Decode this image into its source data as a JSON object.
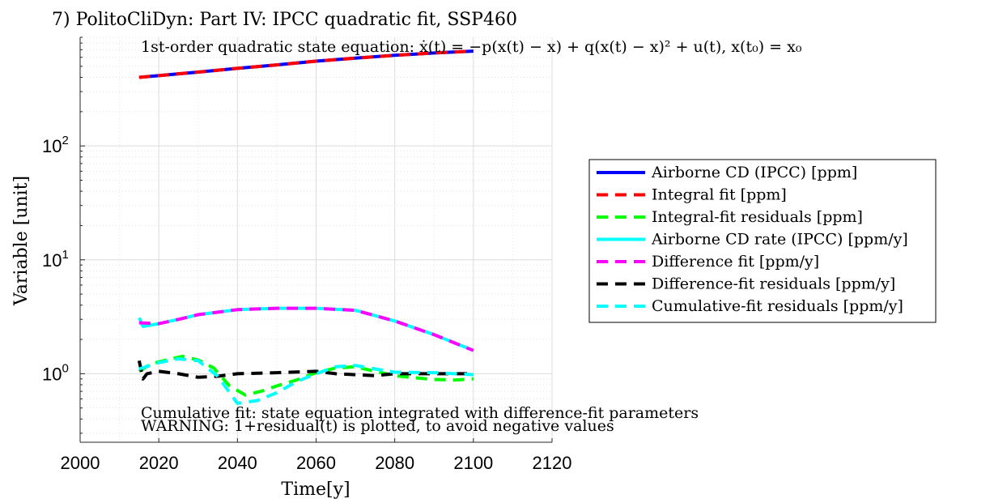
{
  "chart_data": {
    "type": "line",
    "title": "7) PolitoCliDyn: Part IV: IPCC quadratic fit, SSP460",
    "equation_text": "1st-order quadratic state equation: ẋ(t) = −p(x(t) − x) + q(x(t) − x)² + u(t), x(t₀) = x₀",
    "xlabel": "Time[y]",
    "ylabel": "Variable [unit]",
    "xlim": [
      2000,
      2120
    ],
    "ylim": [
      0.25,
      900
    ],
    "yscale": "log",
    "grid": true,
    "legend_position": "right",
    "x_ticks": [
      "2000",
      "2020",
      "2040",
      "2060",
      "2080",
      "2100",
      "2120"
    ],
    "y_ticks": [
      {
        "base": "10",
        "exp": "0",
        "value": 1
      },
      {
        "base": "10",
        "exp": "1",
        "value": 10
      },
      {
        "base": "10",
        "exp": "2",
        "value": 100
      }
    ],
    "annotations": [
      "Cumulative fit: state equation integrated with difference-fit parameters",
      "WARNING: 1+residual(t) is plotted, to avoid negative values"
    ],
    "series": [
      {
        "name": "Airborne CD (IPCC) [ppm]",
        "color": "#0000ff",
        "style": "solid",
        "x": [
          2015,
          2030,
          2040,
          2050,
          2060,
          2070,
          2080,
          2090,
          2100
        ],
        "y": [
          400,
          445,
          480,
          515,
          555,
          590,
          625,
          655,
          680
        ]
      },
      {
        "name": "Integral fit [ppm]",
        "color": "#ff0000",
        "style": "dashed",
        "x": [
          2015,
          2030,
          2040,
          2050,
          2060,
          2070,
          2080,
          2090,
          2100
        ],
        "y": [
          400,
          445,
          480,
          515,
          555,
          590,
          625,
          655,
          680
        ]
      },
      {
        "name": "Integral-fit residuals [ppm]",
        "color": "#00ff00",
        "style": "dashed",
        "x": [
          2015,
          2018,
          2022,
          2026,
          2030,
          2034,
          2038,
          2042,
          2046,
          2050,
          2055,
          2060,
          2065,
          2070,
          2075,
          2080,
          2085,
          2090,
          2095,
          2100
        ],
        "y": [
          1.05,
          1.22,
          1.32,
          1.42,
          1.32,
          1.12,
          0.78,
          0.65,
          0.7,
          0.78,
          0.88,
          1.02,
          1.12,
          1.15,
          1.05,
          0.96,
          0.92,
          0.89,
          0.88,
          0.9
        ]
      },
      {
        "name": "Airborne CD rate (IPCC) [ppm/y]",
        "color": "#00ffff",
        "style": "solid",
        "x": [
          2015,
          2016,
          2020,
          2025,
          2030,
          2040,
          2050,
          2060,
          2070,
          2080,
          2090,
          2100
        ],
        "y": [
          3.1,
          2.6,
          2.75,
          3.0,
          3.3,
          3.65,
          3.75,
          3.75,
          3.6,
          2.9,
          2.2,
          1.6
        ]
      },
      {
        "name": "Difference fit [ppm/y]",
        "color": "#ff00ff",
        "style": "dashed",
        "x": [
          2015,
          2020,
          2025,
          2030,
          2040,
          2050,
          2060,
          2070,
          2080,
          2090,
          2100
        ],
        "y": [
          2.8,
          2.75,
          3.0,
          3.3,
          3.65,
          3.75,
          3.75,
          3.6,
          2.9,
          2.2,
          1.6
        ]
      },
      {
        "name": "Difference-fit residuals [ppm/y]",
        "color": "#000000",
        "style": "dashed",
        "x": [
          2015,
          2016,
          2017,
          2020,
          2025,
          2030,
          2035,
          2040,
          2050,
          2060,
          2065,
          2070,
          2075,
          2080,
          2090,
          2100
        ],
        "y": [
          1.3,
          0.9,
          1.0,
          1.05,
          1.0,
          0.93,
          0.95,
          1.0,
          1.02,
          1.05,
          1.0,
          0.98,
          0.96,
          1.0,
          1.0,
          1.0
        ]
      },
      {
        "name": "Cumulative-fit residuals [ppm/y]",
        "color": "#00ffff",
        "style": "dashed",
        "x": [
          2015,
          2020,
          2025,
          2030,
          2035,
          2040,
          2045,
          2050,
          2055,
          2060,
          2065,
          2070,
          2075,
          2080,
          2090,
          2100
        ],
        "y": [
          1.1,
          1.25,
          1.35,
          1.3,
          0.95,
          0.55,
          0.58,
          0.68,
          0.85,
          1.0,
          1.15,
          1.18,
          1.1,
          1.03,
          1.02,
          0.98
        ]
      }
    ]
  }
}
